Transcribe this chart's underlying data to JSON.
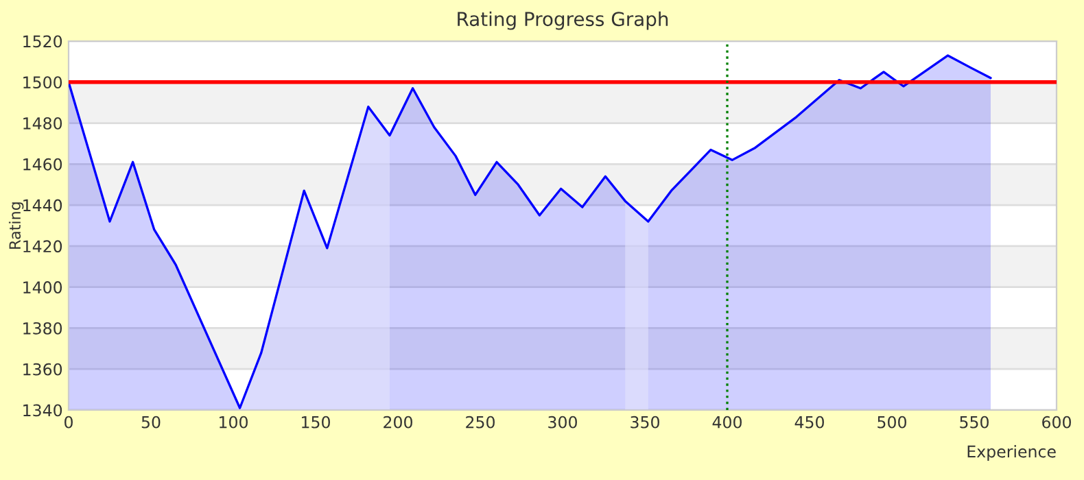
{
  "chart_data": {
    "type": "area",
    "title": "Rating Progress Graph",
    "xlabel": "Experience",
    "ylabel": "Rating",
    "x": [
      0,
      25,
      39,
      52,
      65,
      104,
      117,
      143,
      157,
      182,
      195,
      209,
      222,
      235,
      247,
      260,
      273,
      286,
      299,
      312,
      326,
      338,
      352,
      366,
      390,
      403,
      417,
      442,
      468,
      481,
      495,
      507,
      534,
      548,
      560
    ],
    "series": [
      {
        "color": "#0000ff",
        "values": [
          1500,
          1432,
          1461,
          1428,
          1411,
          1341,
          1368,
          1447,
          1419,
          1488,
          1474,
          1497,
          1478,
          1464,
          1445,
          1461,
          1450,
          1435,
          1448,
          1439,
          1454,
          1442,
          1432,
          1447,
          1467,
          1462,
          1468,
          1483,
          1501,
          1497,
          1505,
          1498,
          1513,
          1507,
          1502
        ]
      }
    ],
    "xlim": [
      0,
      600
    ],
    "xticks": [
      0,
      50,
      100,
      150,
      200,
      250,
      300,
      350,
      400,
      450,
      500,
      550,
      600
    ],
    "ylim": [
      1340,
      1520
    ],
    "yticks": [
      1340,
      1360,
      1380,
      1400,
      1420,
      1440,
      1460,
      1480,
      1500,
      1520
    ],
    "grid": "y",
    "marker": "none",
    "line_style": "solid",
    "legend": false,
    "ref_lines": [
      {
        "axis": "y",
        "value": 1500,
        "color": "#ff0000",
        "line_style": "solid"
      },
      {
        "axis": "x",
        "value": 400,
        "color": "#008000",
        "line_style": "dotted"
      }
    ],
    "bands": [
      {
        "axis": "x",
        "from": 104,
        "to": 195,
        "color": "#e2e2fc"
      },
      {
        "axis": "x",
        "from": 338,
        "to": 352,
        "color": "#e2e2fc"
      }
    ]
  }
}
